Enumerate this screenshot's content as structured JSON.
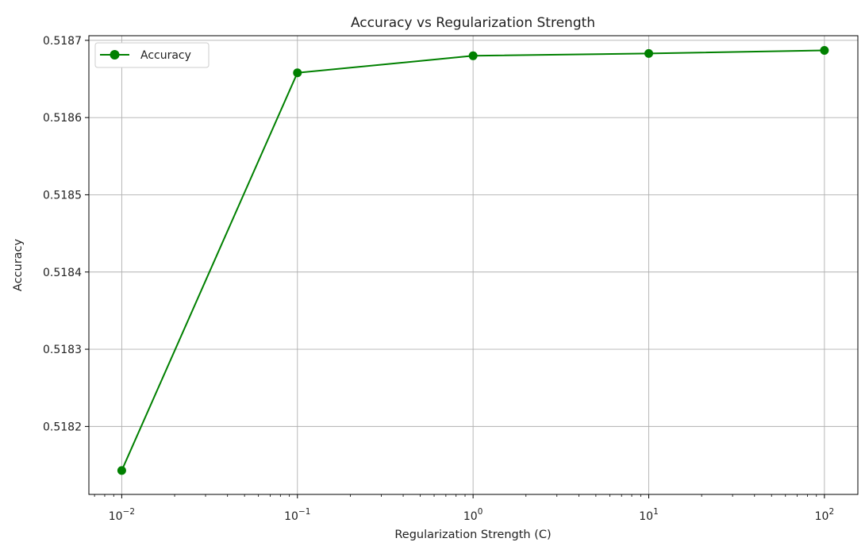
{
  "chart_data": {
    "type": "line",
    "title": "Accuracy vs Regularization Strength",
    "xlabel": "Regularization Strength (C)",
    "ylabel": "Accuracy",
    "x_scale": "log",
    "xlim": [
      0.0065,
      155
    ],
    "ylim": [
      0.518112,
      0.518706
    ],
    "x_ticks": [
      {
        "value": 0.01,
        "base": "10",
        "exp": "−2"
      },
      {
        "value": 0.1,
        "base": "10",
        "exp": "−1"
      },
      {
        "value": 1,
        "base": "10",
        "exp": "0"
      },
      {
        "value": 10,
        "base": "10",
        "exp": "1"
      },
      {
        "value": 100,
        "base": "10",
        "exp": "2"
      }
    ],
    "y_ticks": [
      {
        "value": 0.5182,
        "label": "0.5182"
      },
      {
        "value": 0.5183,
        "label": "0.5183"
      },
      {
        "value": 0.5184,
        "label": "0.5184"
      },
      {
        "value": 0.5185,
        "label": "0.5185"
      },
      {
        "value": 0.5186,
        "label": "0.5186"
      },
      {
        "value": 0.5187,
        "label": "0.5187"
      }
    ],
    "grid": true,
    "legend_position": "top-left",
    "series": [
      {
        "name": "Accuracy",
        "color": "#008000",
        "marker": "circle",
        "x": [
          0.01,
          0.1,
          1,
          10,
          100
        ],
        "y": [
          0.518143,
          0.518658,
          0.51868,
          0.518683,
          0.518687
        ]
      }
    ]
  }
}
